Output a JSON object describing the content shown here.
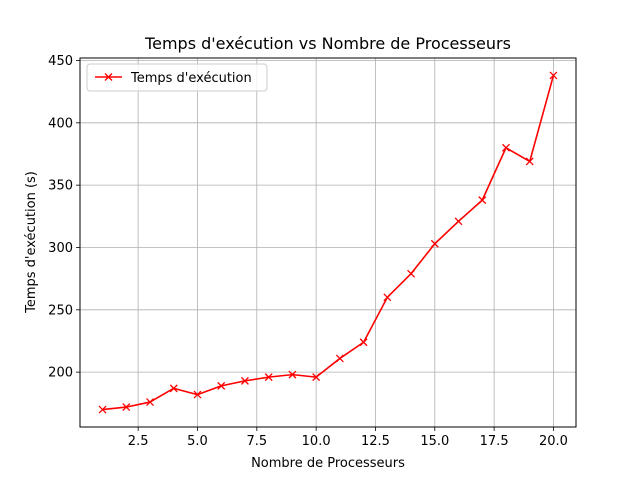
{
  "chart_data": {
    "type": "line",
    "title": "Temps d'exécution vs Nombre de Processeurs",
    "xlabel": "Nombre de Processeurs",
    "ylabel": "Temps d'exécution (s)",
    "xlim": [
      0.05,
      20.95
    ],
    "ylim": [
      156,
      452
    ],
    "xticks": [
      2.5,
      5.0,
      7.5,
      10.0,
      12.5,
      15.0,
      17.5,
      20.0
    ],
    "xtick_labels": [
      "2.5",
      "5.0",
      "7.5",
      "10.0",
      "12.5",
      "15.0",
      "17.5",
      "20.0"
    ],
    "yticks": [
      200,
      250,
      300,
      350,
      400,
      450
    ],
    "ytick_labels": [
      "200",
      "250",
      "300",
      "350",
      "400",
      "450"
    ],
    "grid": true,
    "legend_position": "top-left",
    "series": [
      {
        "name": "Temps d'exécution",
        "color": "#ff0000",
        "marker": "x",
        "x": [
          1,
          2,
          3,
          4,
          5,
          6,
          7,
          8,
          9,
          10,
          11,
          12,
          13,
          14,
          15,
          16,
          17,
          18,
          19,
          20
        ],
        "y": [
          170,
          172,
          176,
          187,
          182,
          189,
          193,
          196,
          198,
          196,
          211,
          224,
          260,
          279,
          303,
          321,
          338,
          380,
          369,
          438
        ]
      }
    ]
  }
}
